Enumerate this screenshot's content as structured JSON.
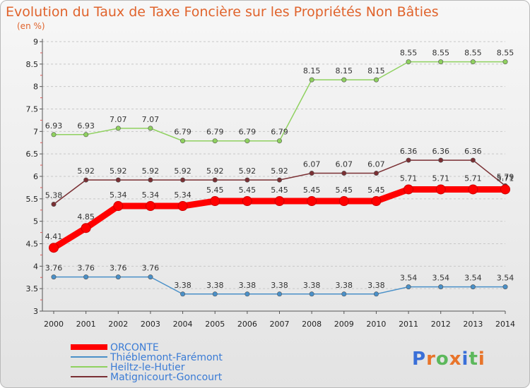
{
  "chart_data": {
    "type": "line",
    "title": "Evolution du Taux de Taxe Foncière sur les Propriétés Non Bâties",
    "subtitle": "(en %)",
    "xlabel": "",
    "ylabel": "",
    "x": [
      "2000",
      "2001",
      "2002",
      "2003",
      "2004",
      "2005",
      "2006",
      "2007",
      "2008",
      "2009",
      "2010",
      "2011",
      "2012",
      "2013",
      "2014"
    ],
    "yticks": [
      "3",
      "3.5",
      "4",
      "4.5",
      "5",
      "5.5",
      "6",
      "6.5",
      "7",
      "7.5",
      "8",
      "8.5",
      "9"
    ],
    "ylim": [
      3,
      9
    ],
    "grid": "horizontal dashed",
    "legend_position": "bottom-left",
    "series": [
      {
        "name": "ORCONTE",
        "color": "#ff0000",
        "values": [
          4.41,
          4.85,
          5.34,
          5.34,
          5.34,
          5.45,
          5.45,
          5.45,
          5.45,
          5.45,
          5.45,
          5.71,
          5.71,
          5.71,
          5.71
        ],
        "labels": [
          "4.41",
          "4.85",
          "5.34",
          "5.34",
          "5.34",
          "5.45",
          "5.45",
          "5.45",
          "5.45",
          "5.45",
          "5.45",
          "5.71",
          "5.71",
          "5.71",
          "5.71"
        ]
      },
      {
        "name": "Thiéblemont-Farémont",
        "color": "#4a90c8",
        "values": [
          3.76,
          3.76,
          3.76,
          3.76,
          3.38,
          3.38,
          3.38,
          3.38,
          3.38,
          3.38,
          3.38,
          3.54,
          3.54,
          3.54,
          3.54
        ],
        "labels": [
          "3.76",
          "3.76",
          "3.76",
          "3.76",
          "3.38",
          "3.38",
          "3.38",
          "3.38",
          "3.38",
          "3.38",
          "3.38",
          "3.54",
          "3.54",
          "3.54",
          "3.54"
        ]
      },
      {
        "name": "Heiltz-le-Hutier",
        "color": "#8fd15f",
        "values": [
          6.93,
          6.93,
          7.07,
          7.07,
          6.79,
          6.79,
          6.79,
          6.79,
          8.15,
          8.15,
          8.15,
          8.55,
          8.55,
          8.55,
          8.55
        ],
        "labels": [
          "6.93",
          "6.93",
          "7.07",
          "7.07",
          "6.79",
          "6.79",
          "6.79",
          "6.79",
          "8.15",
          "8.15",
          "8.15",
          "8.55",
          "8.55",
          "8.55",
          "8.55"
        ]
      },
      {
        "name": "Matignicourt-Goncourt",
        "color": "#7a2f33",
        "values": [
          5.38,
          5.92,
          5.92,
          5.92,
          5.92,
          5.92,
          5.92,
          5.92,
          6.07,
          6.07,
          6.07,
          6.36,
          6.36,
          6.36,
          5.79
        ],
        "labels": [
          "5.38",
          "5.92",
          "5.92",
          "5.92",
          "5.92",
          "5.92",
          "5.92",
          "5.92",
          "6.07",
          "6.07",
          "6.07",
          "6.36",
          "6.36",
          "6.36",
          "5.79"
        ]
      }
    ]
  },
  "brand": {
    "text": "Proxiti",
    "letter_colors": [
      "#3a6fd8",
      "#e8742a",
      "#5cb85c",
      "#e8742a",
      "#3a6fd8",
      "#5cb85c",
      "#e8742a"
    ]
  }
}
